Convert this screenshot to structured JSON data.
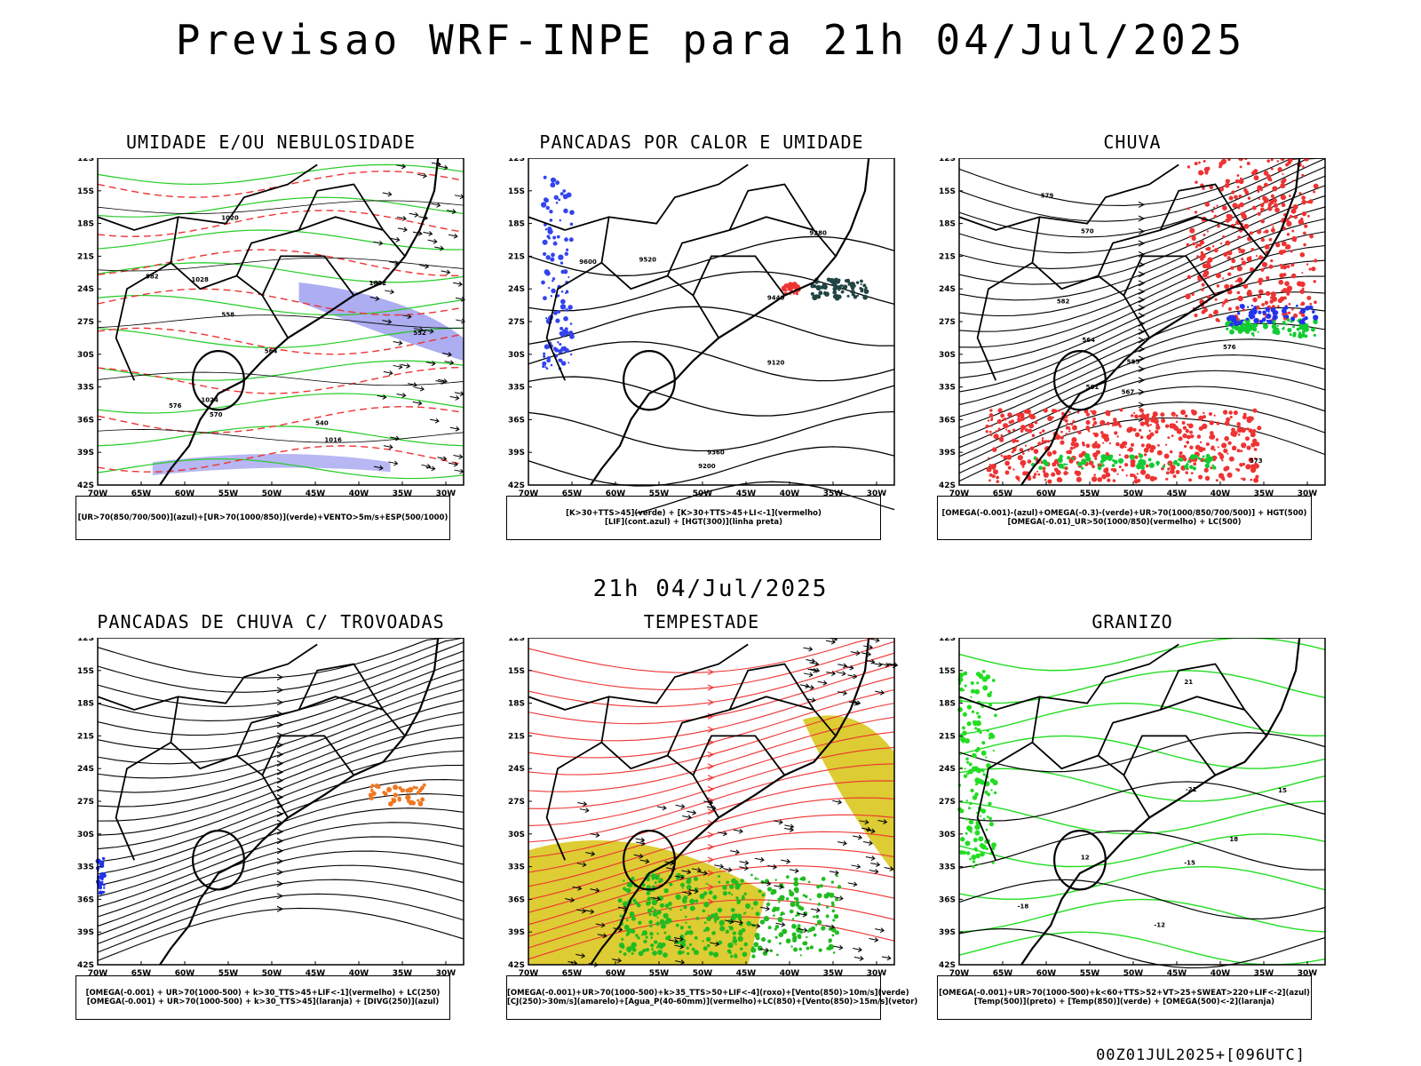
{
  "header": {
    "title": "Previsao WRF-INPE  para 21h 04/Jul/2025",
    "subtitle": "21h 04/Jul/2025",
    "footer": "00Z01JUL2025+[096UTC]"
  },
  "axes": {
    "lat_labels": [
      "12S",
      "15S",
      "18S",
      "21S",
      "24S",
      "27S",
      "30S",
      "33S",
      "36S",
      "39S",
      "42S"
    ],
    "lon_labels": [
      "70W",
      "65W",
      "60W",
      "55W",
      "50W",
      "45W",
      "40W",
      "35W",
      "30W"
    ]
  },
  "panels": [
    {
      "id": "umidade",
      "title": "UMIDADE E/OU NEBULOSIDADE",
      "legend": [
        "[UR>70(850/700/500)](azul)+[UR>70(1000/850)](verde)+VENTO>5m/s+ESP(500/1000)"
      ],
      "contour_labels": [
        "1016",
        "1020",
        "1024",
        "1028",
        "1032",
        "540",
        "552",
        "558",
        "564",
        "570",
        "576",
        "582"
      ],
      "colors": {
        "blue": "#9999ee",
        "green": "#22cc22",
        "red": "#ee3333"
      }
    },
    {
      "id": "pancadas-calor",
      "title": "PANCADAS POR CALOR E UMIDADE",
      "legend": [
        "[K>30+TTS>45](verde) + [K>30+TTS>45+LI<-1](vermelho)",
        "[LIF](cont.azul) + [HGT(300)](linha preta)"
      ],
      "contour_labels": [
        "9600",
        "9520",
        "9440",
        "9360",
        "9280",
        "9200",
        "9120"
      ],
      "colors": {
        "blue": "#3344ee",
        "dark": "#224444",
        "red": "#ee3333"
      }
    },
    {
      "id": "chuva",
      "title": "CHUVA",
      "legend": [
        "[OMEGA(-0.001)-(azul)+OMEGA(-0.3)-(verde)+UR>70(1000/850/700/500)] + HGT(500)",
        "[OMEGA(-0.01)_UR>50(1000/850)(vermelho) + LC(500)"
      ],
      "contour_labels": [
        "585",
        "582",
        "579",
        "576",
        "573",
        "570",
        "567",
        "564",
        "561"
      ],
      "colors": {
        "blue": "#2233ee",
        "green": "#11cc33",
        "red": "#ee3333"
      }
    },
    {
      "id": "trovoadas",
      "title": "PANCADAS DE CHUVA C/ TROVOADAS",
      "legend": [
        "[OMEGA(-0.001) + UR>70(1000-500) + k>30_TTS>45+LIF<-1](vermelho) + LC(250)",
        "[OMEGA(-0.001) + UR>70(1000-500) + k>30_TTS>45](laranja) + [DIVG(250)](azul)"
      ],
      "contour_labels": [],
      "colors": {
        "orange": "#ee7722",
        "red": "#ee3333",
        "blue": "#2233ee"
      }
    },
    {
      "id": "tempestade",
      "title": "TEMPESTADE",
      "legend": [
        "[OMEGA(-0.001)+UR>70(1000-500)+k>35_TTS>50+LIF<-4](roxo)+[Vento(850)>10m/s](verde)",
        "[CJ(250)>30m/s](amarelo)+[Agua_P(40-60mm)](vermelho)+LC(850)+[Vento(850)>15m/s](vetor)"
      ],
      "contour_labels": [],
      "colors": {
        "yellow": "#ddcc33",
        "green": "#22bb22",
        "red": "#ee3333"
      }
    },
    {
      "id": "granizo",
      "title": "GRANIZO",
      "legend": [
        "[OMEGA(-0.001)+UR>70(1000-500)+k<60+TTS>52+VT>25+SWEAT>220+LIF<-2](azul)",
        "[Temp(500)](preto) + [Temp(850)](verde) + [OMEGA(500)<-2](laranja)"
      ],
      "contour_labels": [
        "-15",
        "-18",
        "-12",
        "-21",
        "15",
        "18",
        "21",
        "12"
      ],
      "colors": {
        "green": "#22dd22",
        "black": "#000000"
      }
    }
  ]
}
